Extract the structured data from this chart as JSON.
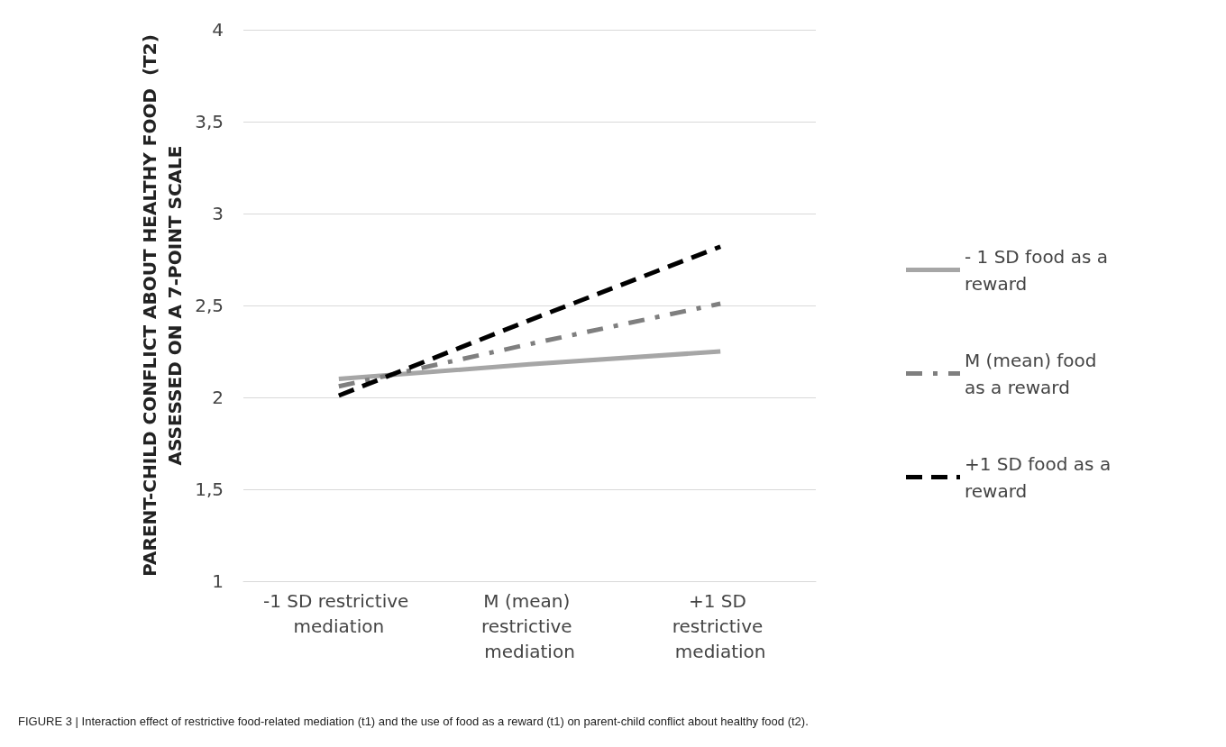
{
  "chart_data": {
    "type": "line",
    "ylabel": "PARENT-CHILD CONFLICT ABOUT HEALTHY FOOD  (T2) ASSESSED ON A 7-POINT SCALE",
    "categories": [
      "-1 SD restrictive mediation",
      "M (mean) restrictive mediation",
      "+1 SD restrictive mediation"
    ],
    "series": [
      {
        "name": "- 1 SD food as a reward",
        "color": "#a6a6a6",
        "values": [
          2.1,
          2.18,
          2.25
        ],
        "line_style": "solid"
      },
      {
        "name": "M (mean) food as a reward",
        "color": "#7f7f7f",
        "values": [
          2.06,
          2.29,
          2.51
        ],
        "line_style": "dashdot"
      },
      {
        "name": "+1 SD food as a reward",
        "color": "#000000",
        "values": [
          2.01,
          2.42,
          2.82
        ],
        "line_style": "dashed"
      }
    ],
    "ylim": [
      1,
      4
    ],
    "yticks": [
      1,
      {
        "value": 1.5,
        "label": "1,5"
      },
      2,
      {
        "value": 2.5,
        "label": "2,5"
      },
      3,
      {
        "value": 3.5,
        "label": "3,5"
      },
      4
    ],
    "grid": "y",
    "legend": "right",
    "marker": "none",
    "annotations": [
      "FIGURE 3 | Interaction effect of restrictive food-related mediation (t1) and the use of food as a reward (t1) on parent-child conflict about healthy food (t2)."
    ]
  }
}
